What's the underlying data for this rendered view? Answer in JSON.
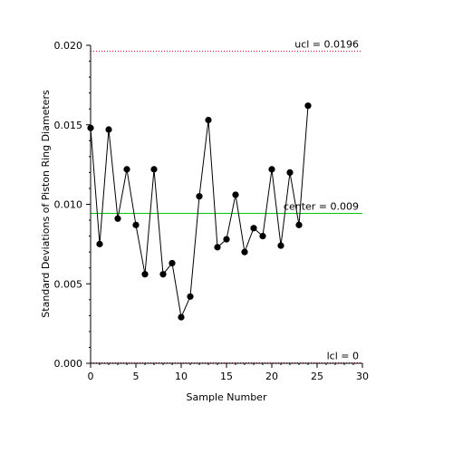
{
  "chart_data": {
    "type": "line",
    "title": "",
    "xlabel": "Sample Number",
    "ylabel": "Standard Deviations of Piston Ring Diameters",
    "xlim": [
      0,
      30
    ],
    "ylim": [
      0,
      0.02
    ],
    "x_ticks": [
      0,
      5,
      10,
      15,
      20,
      25,
      30
    ],
    "x_tick_labels": [
      "0",
      "5",
      "10",
      "15",
      "20",
      "25",
      "30"
    ],
    "y_ticks": [
      0,
      0.005,
      0.01,
      0.015,
      0.02
    ],
    "y_tick_labels": [
      "0.000",
      "0.005",
      "0.010",
      "0.015",
      "0.020"
    ],
    "grid": false,
    "series": [
      {
        "x": [
          0,
          1,
          2,
          3,
          4,
          5,
          6,
          7,
          8,
          9,
          10,
          11,
          12,
          13,
          14,
          15,
          16,
          17,
          18,
          19,
          20,
          21,
          22,
          23,
          24
        ],
        "values": [
          0.0148,
          0.0075,
          0.0147,
          0.0091,
          0.0122,
          0.0087,
          0.0056,
          0.0122,
          0.0056,
          0.0063,
          0.0029,
          0.0042,
          0.0105,
          0.0153,
          0.0073,
          0.0078,
          0.0106,
          0.007,
          0.0085,
          0.008,
          0.0122,
          0.0074,
          0.012,
          0.0087,
          0.0162
        ]
      }
    ],
    "control_lines": [
      {
        "label": "ucl = 0.0196",
        "value": 0.0196,
        "color": "#cc0033",
        "style": "dotted"
      },
      {
        "label": "center = 0.009",
        "value": 0.0094,
        "color": "#00cc00",
        "style": "solid"
      },
      {
        "label": "lcl = 0",
        "value": 0,
        "color": "#cc0033",
        "style": "dotted"
      }
    ]
  }
}
